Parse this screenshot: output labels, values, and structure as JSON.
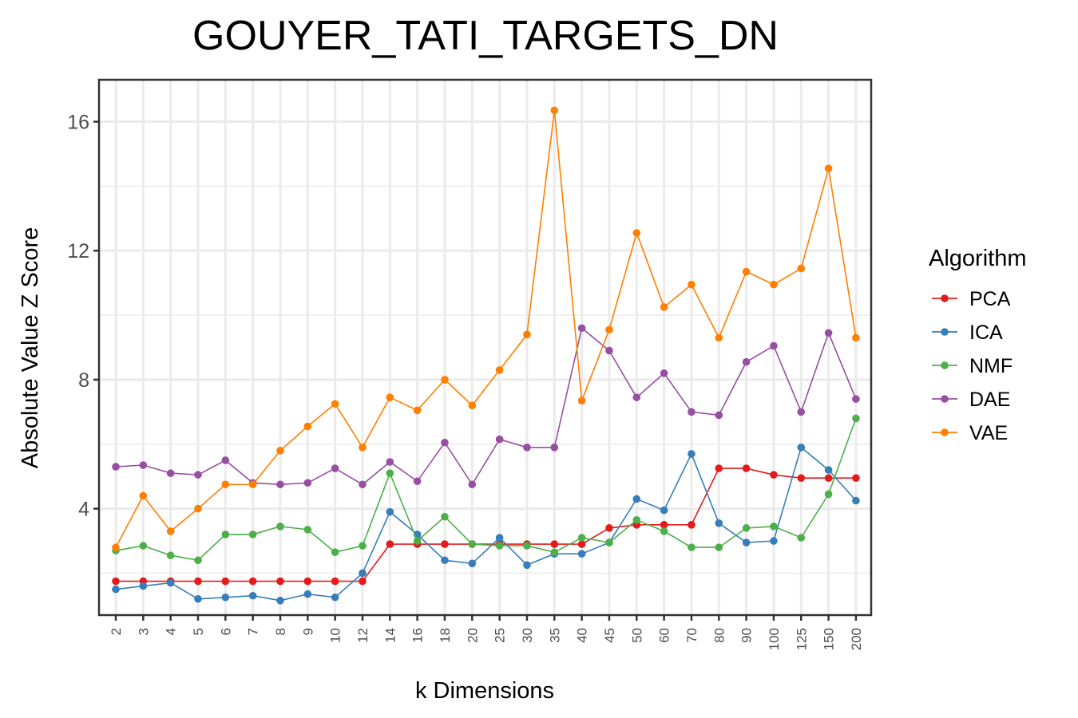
{
  "chart_data": {
    "type": "line",
    "title": "GOUYER_TATI_TARGETS_DN",
    "xlabel": "k Dimensions",
    "ylabel": "Absolute Value Z Score",
    "categories": [
      "2",
      "3",
      "4",
      "5",
      "6",
      "7",
      "8",
      "9",
      "10",
      "12",
      "14",
      "16",
      "18",
      "20",
      "25",
      "30",
      "35",
      "40",
      "45",
      "50",
      "60",
      "70",
      "80",
      "90",
      "100",
      "125",
      "150",
      "200"
    ],
    "y_ticks": [
      "4",
      "8",
      "12",
      "16"
    ],
    "ylim": [
      0.7,
      17.3
    ],
    "grid": true,
    "legend": {
      "title": "Algorithm",
      "position": "right"
    },
    "series": [
      {
        "name": "PCA",
        "color": "#e41a1c",
        "values": [
          1.75,
          1.75,
          1.75,
          1.75,
          1.75,
          1.75,
          1.75,
          1.75,
          1.75,
          1.75,
          2.9,
          2.9,
          2.9,
          2.9,
          2.9,
          2.9,
          2.9,
          2.9,
          3.4,
          3.5,
          3.5,
          3.5,
          5.25,
          5.25,
          5.05,
          4.95,
          4.95,
          4.95
        ]
      },
      {
        "name": "ICA",
        "color": "#377eb8",
        "values": [
          1.5,
          1.6,
          1.7,
          1.2,
          1.25,
          1.3,
          1.15,
          1.35,
          1.25,
          2.0,
          3.9,
          3.2,
          2.4,
          2.3,
          3.1,
          2.25,
          2.6,
          2.6,
          2.95,
          4.3,
          3.95,
          5.7,
          3.55,
          2.95,
          3.0,
          5.9,
          5.2,
          4.25
        ]
      },
      {
        "name": "NMF",
        "color": "#4daf4a",
        "values": [
          2.7,
          2.85,
          2.55,
          2.4,
          3.2,
          3.2,
          3.45,
          3.35,
          2.65,
          2.85,
          5.1,
          3.0,
          3.75,
          2.9,
          2.85,
          2.85,
          2.65,
          3.1,
          2.95,
          3.65,
          3.3,
          2.8,
          2.8,
          3.4,
          3.45,
          3.1,
          4.45,
          6.8
        ]
      },
      {
        "name": "DAE",
        "color": "#984ea3",
        "values": [
          5.3,
          5.35,
          5.1,
          5.05,
          5.5,
          4.8,
          4.75,
          4.8,
          5.25,
          4.75,
          5.45,
          4.85,
          6.05,
          4.75,
          6.15,
          5.9,
          5.9,
          9.6,
          8.9,
          7.45,
          8.2,
          7.0,
          6.9,
          8.55,
          9.05,
          7.0,
          9.45,
          7.4
        ]
      },
      {
        "name": "VAE",
        "color": "#ff7f00",
        "values": [
          2.8,
          4.4,
          3.3,
          4.0,
          4.75,
          4.75,
          5.8,
          6.55,
          7.25,
          5.9,
          7.45,
          7.05,
          8.0,
          7.2,
          8.3,
          9.4,
          16.35,
          7.35,
          9.55,
          12.55,
          10.25,
          10.95,
          9.3,
          11.35,
          10.95,
          11.45,
          14.55,
          9.3
        ]
      }
    ]
  }
}
